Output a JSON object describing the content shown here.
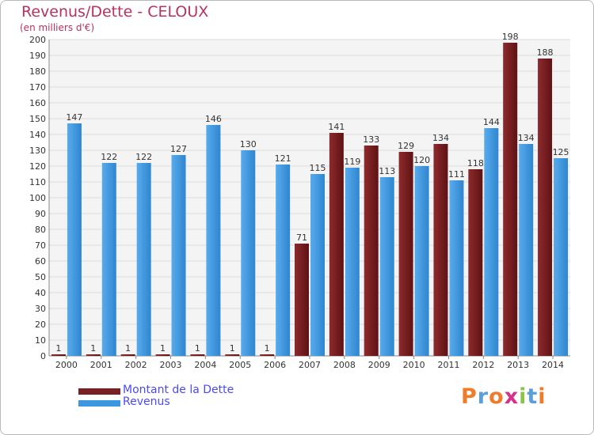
{
  "title": "Revenus/Dette - CELOUX",
  "subtitle": "(en milliers d'€)",
  "logo": {
    "text": "Proxiti",
    "colors": [
      "#f07c2b",
      "#5c9fd8",
      "#f07c2b",
      "#d6308a",
      "#8bc34a",
      "#5c9fd8",
      "#f07c2b"
    ]
  },
  "colors": {
    "dette": "#7a1f22",
    "revenus": "#3d97e0",
    "title": "#b5335d",
    "legend_text": "#4a4af5",
    "grid": "#dddddd",
    "axis_text": "#333333"
  },
  "chart_data": {
    "type": "bar",
    "title": "Revenus/Dette - CELOUX",
    "subtitle": "(en milliers d'€)",
    "categories": [
      "2000",
      "2001",
      "2002",
      "2003",
      "2004",
      "2005",
      "2006",
      "2007",
      "2008",
      "2009",
      "2010",
      "2011",
      "2012",
      "2013",
      "2014"
    ],
    "series": [
      {
        "name": "Montant de la Dette",
        "values": [
          1,
          1,
          1,
          1,
          1,
          1,
          1,
          71,
          141,
          133,
          129,
          134,
          118,
          198,
          188
        ]
      },
      {
        "name": "Revenus",
        "values": [
          147,
          122,
          122,
          127,
          146,
          130,
          121,
          115,
          119,
          113,
          120,
          111,
          144,
          134,
          125
        ]
      }
    ],
    "ylim": [
      0,
      200
    ],
    "yticks": [
      0,
      10,
      20,
      30,
      40,
      50,
      60,
      70,
      80,
      90,
      100,
      110,
      120,
      130,
      140,
      150,
      160,
      170,
      180,
      190,
      200
    ],
    "grid": true,
    "legend": "bottom-left"
  }
}
